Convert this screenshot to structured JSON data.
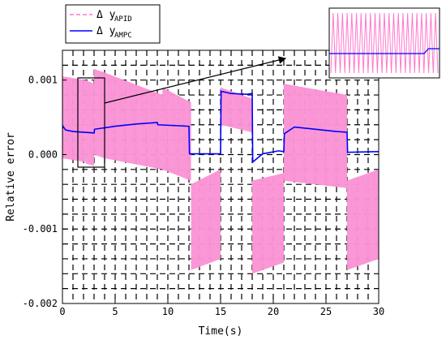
{
  "chart_data": {
    "type": "line",
    "xlabel": "Time(s)",
    "ylabel": "Relative error",
    "xlim": [
      0,
      30
    ],
    "ylim": [
      -0.002,
      0.0014
    ],
    "x_ticks": [
      "0",
      "5",
      "10",
      "15",
      "20",
      "25",
      "30"
    ],
    "y_ticks": [
      "-0.002",
      "-0.001",
      "0.000",
      "0.001"
    ],
    "grid": "dashed",
    "legend_position": "top-left",
    "legend": [
      {
        "symbol": "Δ y",
        "subscript": "APID",
        "style": "dashed",
        "color": "#ff77cc"
      },
      {
        "symbol": "Δ y",
        "subscript": "AMPC",
        "style": "solid",
        "color": "#0000ff"
      }
    ],
    "series": [
      {
        "name": "Δ y APID",
        "color": "#ff77cc",
        "kind": "oscillation-band",
        "segments": [
          {
            "x0": 0,
            "x1": 2.2,
            "upper0": 0.00105,
            "upper1": 0.001,
            "lower0": -5e-05,
            "lower1": -0.0001
          },
          {
            "x0": 2.2,
            "x1": 3.0,
            "upper0": 0.001,
            "upper1": 0.00095,
            "lower0": -0.00012,
            "lower1": -0.00015
          },
          {
            "x0": 3.0,
            "x1": 4.0,
            "upper0": 0.00115,
            "upper1": 0.0011,
            "lower0": 0.0,
            "lower1": -5e-05
          },
          {
            "x0": 4.0,
            "x1": 9.5,
            "upper0": 0.0011,
            "upper1": 0.0008,
            "lower0": -5e-05,
            "lower1": -0.0002
          },
          {
            "x0": 9.5,
            "x1": 12.2,
            "upper0": 0.0009,
            "upper1": 0.0007,
            "lower0": -0.0002,
            "lower1": -0.00035
          },
          {
            "x0": 12.2,
            "x1": 15.0,
            "upper0": -0.0004,
            "upper1": -0.0002,
            "lower0": -0.00155,
            "lower1": -0.0014
          },
          {
            "x0": 15.0,
            "x1": 18.0,
            "upper0": 0.0009,
            "upper1": 0.00075,
            "lower0": 0.0004,
            "lower1": 0.0003
          },
          {
            "x0": 18.0,
            "x1": 21.0,
            "upper0": -0.00035,
            "upper1": -0.00025,
            "lower0": -0.0016,
            "lower1": -0.00145
          },
          {
            "x0": 21.0,
            "x1": 27.0,
            "upper0": 0.00095,
            "upper1": 0.0008,
            "lower0": -0.00035,
            "lower1": -0.00045
          },
          {
            "x0": 27.0,
            "x1": 30.0,
            "upper0": -0.00035,
            "upper1": -0.0002,
            "lower0": -0.00155,
            "lower1": -0.0014
          }
        ]
      },
      {
        "name": "Δ y AMPC",
        "color": "#0000ff",
        "x": [
          0,
          0.05,
          0.3,
          1.0,
          2.0,
          3.0,
          3.05,
          5.0,
          7.0,
          9.0,
          9.05,
          12.0,
          12.05,
          15.0,
          15.05,
          16.0,
          17.5,
          18.0,
          18.05,
          19.0,
          20.5,
          21.0,
          21.05,
          22.0,
          24.0,
          26.0,
          27.0,
          27.05,
          30.0
        ],
        "y": [
          0.00035,
          0.00038,
          0.00033,
          0.00031,
          0.0003,
          0.00029,
          0.00034,
          0.00038,
          0.00041,
          0.00043,
          0.0004,
          0.00038,
          1e-05,
          1e-05,
          0.00085,
          0.00082,
          0.00081,
          0.00082,
          -0.0001,
          1e-05,
          5e-05,
          4e-05,
          0.00028,
          0.00037,
          0.00034,
          0.00031,
          0.0003,
          3e-05,
          4e-05
        ]
      }
    ]
  }
}
